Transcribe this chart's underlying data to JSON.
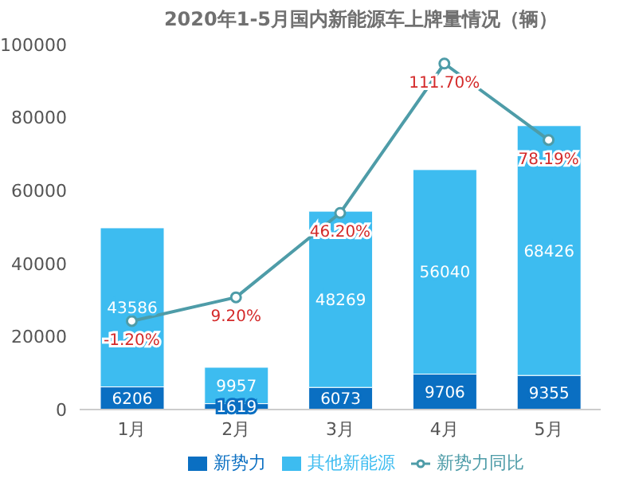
{
  "chart_data": {
    "type": "bar",
    "title": "2020年1-5月国内新能源车上牌量情况（辆）",
    "categories": [
      "1月",
      "2月",
      "3月",
      "4月",
      "5月"
    ],
    "stacked": true,
    "series": [
      {
        "name": "新势力",
        "color": "#0a6fc2",
        "values": [
          6206,
          1619,
          6073,
          9706,
          9355
        ]
      },
      {
        "name": "其他新能源",
        "color": "#3dbcf0",
        "values": [
          43586,
          9957,
          48269,
          56040,
          68426
        ]
      },
      {
        "name": "新势力同比",
        "type": "line",
        "axis": "y2",
        "color": "#4e9ca8",
        "marker": "circle",
        "values": [
          -1.2,
          9.2,
          46.2,
          111.7,
          78.19
        ],
        "value_labels": [
          "-1.20%",
          "9.20%",
          "46.20%",
          "111.70%",
          "78.19%"
        ]
      }
    ],
    "data_labels": true,
    "ylim": [
      0,
      100000
    ],
    "yticks": [
      0,
      20000,
      40000,
      60000,
      80000,
      100000
    ],
    "grid": false,
    "legend": "bottom"
  }
}
